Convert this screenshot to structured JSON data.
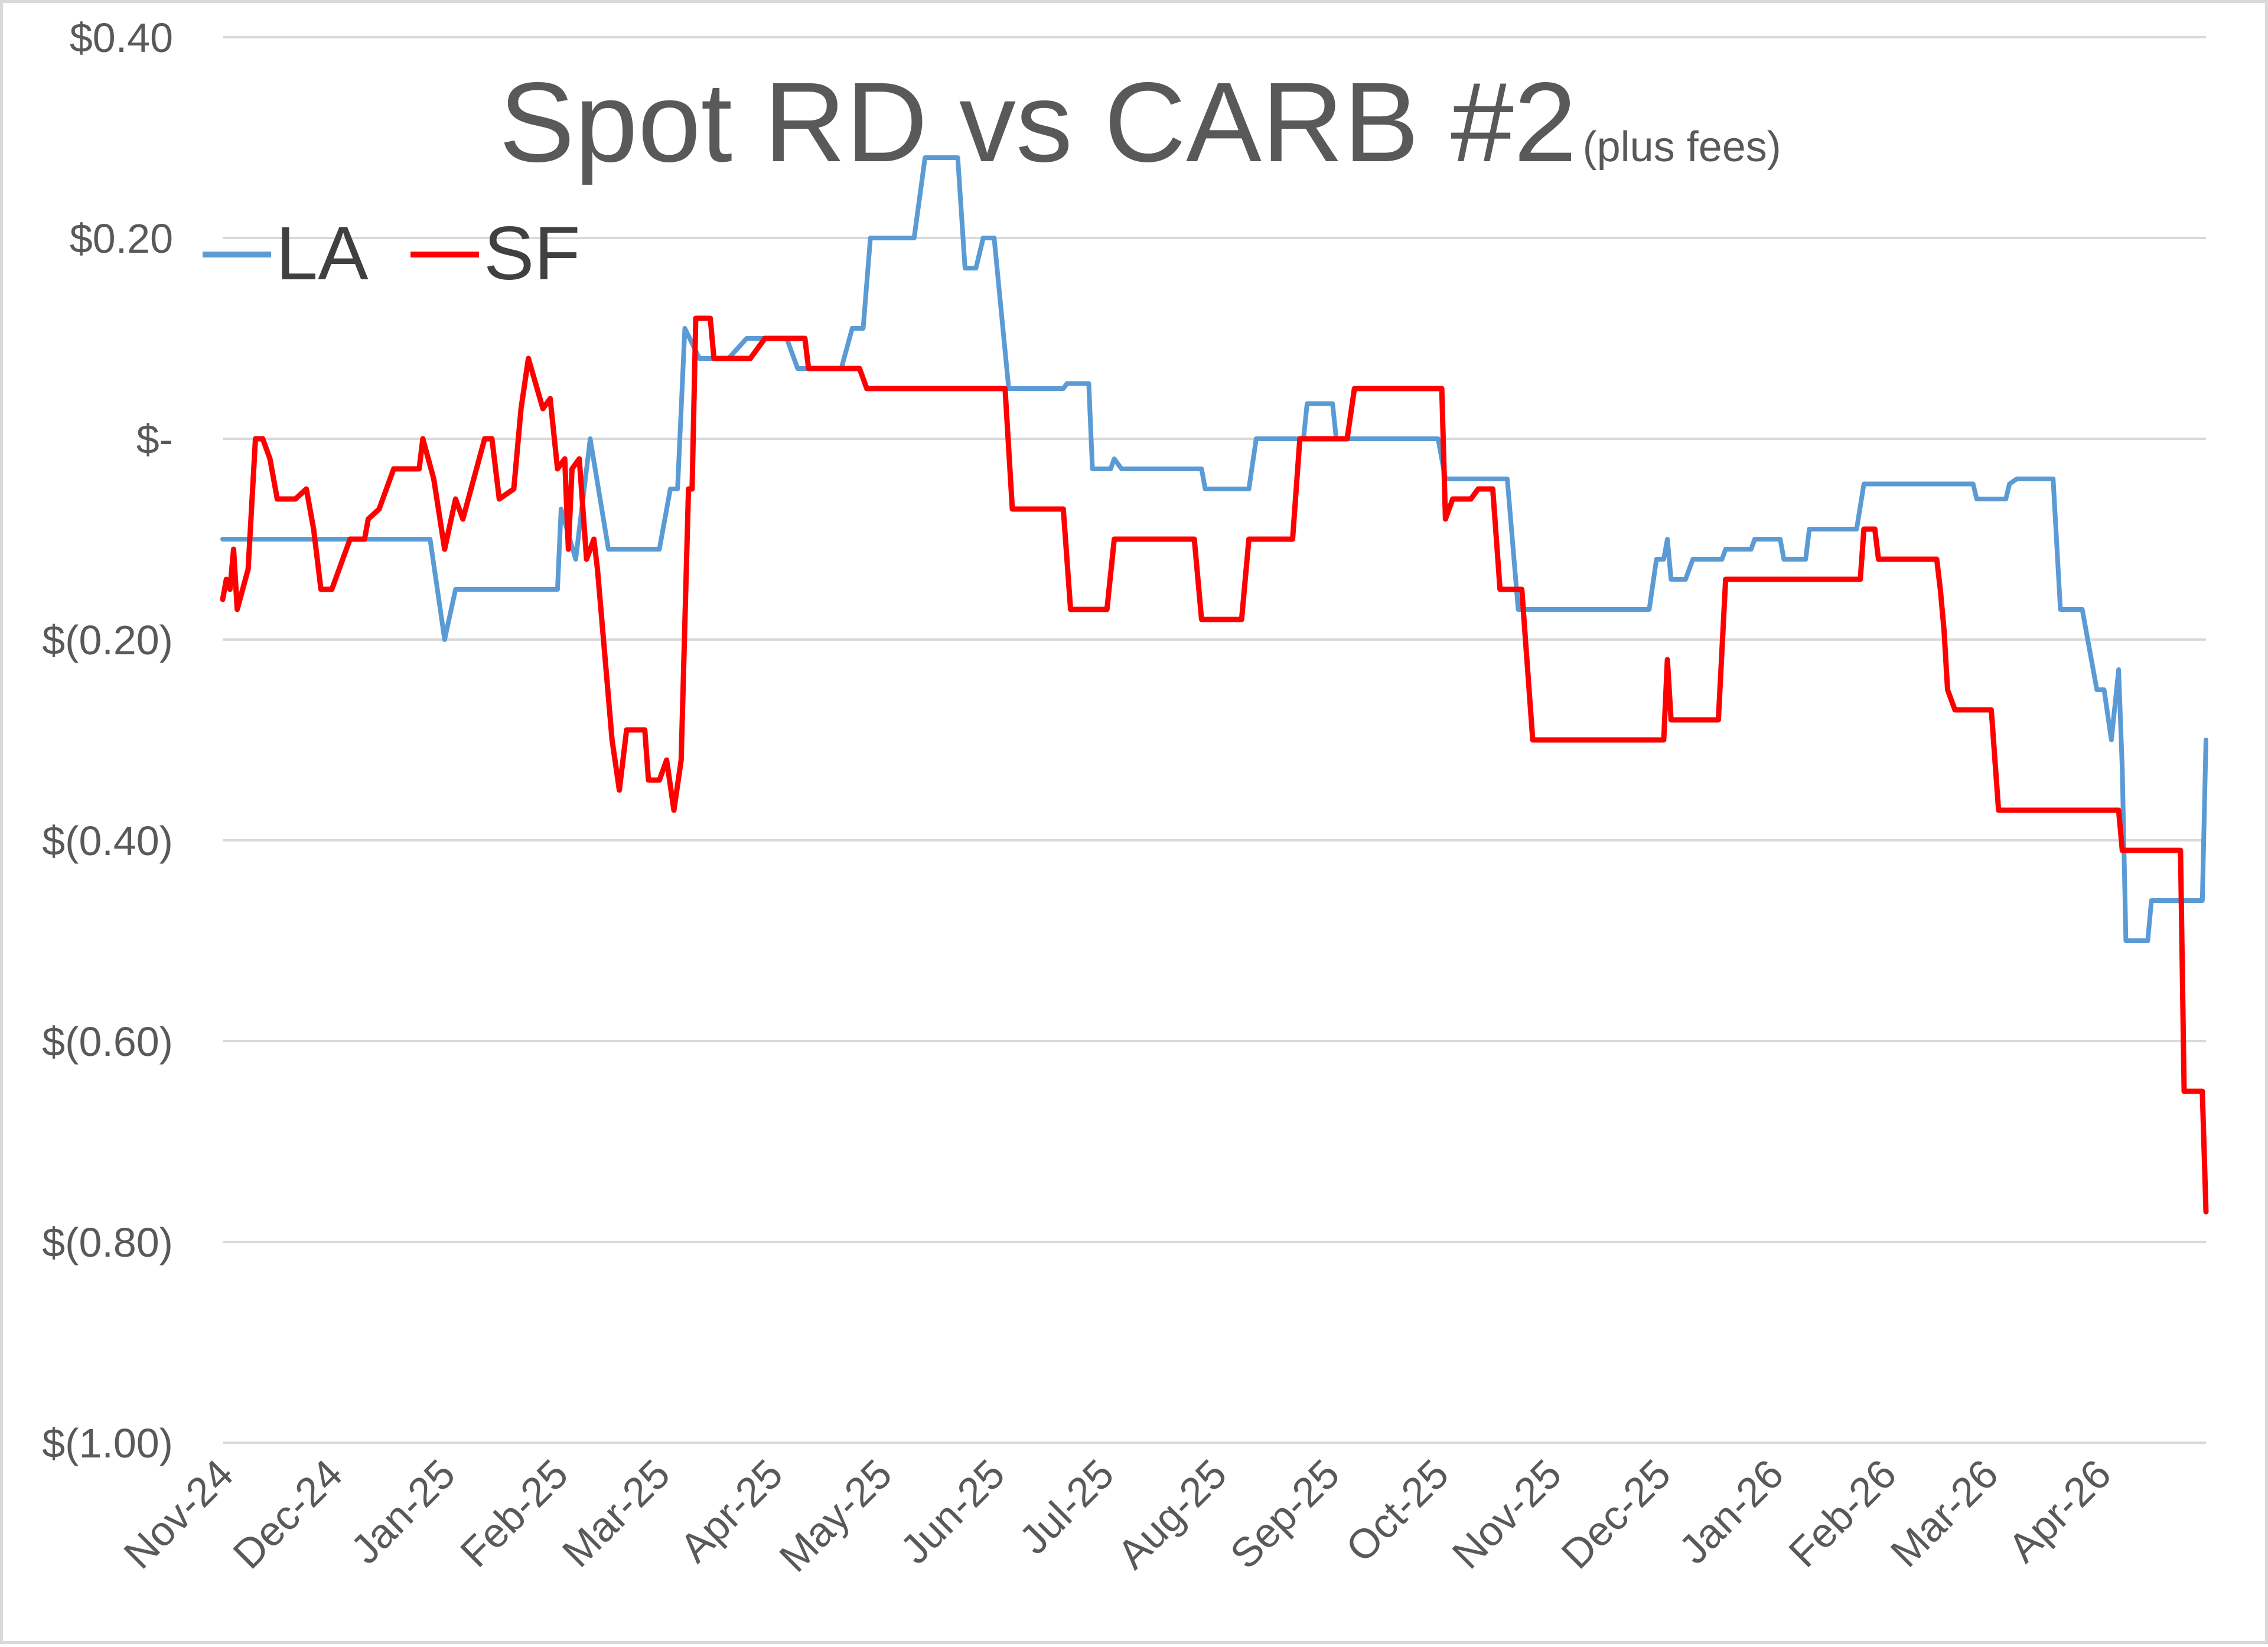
{
  "chart_data": {
    "type": "line",
    "title": "Spot RD vs CARB #2",
    "subtitle": "(plus fees)",
    "xlabel": "",
    "ylabel": "",
    "x_start": "2024-11-01",
    "x_end": "2026-04-30",
    "x_ticks": [
      "Nov-24",
      "Dec-24",
      "Jan-25",
      "Feb-25",
      "Mar-25",
      "Apr-25",
      "May-25",
      "Jun-25",
      "Jul-25",
      "Aug-25",
      "Sep-25",
      "Oct-25",
      "Nov-25",
      "Dec-25",
      "Jan-26",
      "Feb-26",
      "Mar-26",
      "Apr-26"
    ],
    "ylim": [
      -1.0,
      0.4
    ],
    "y_ticks": [
      {
        "value": 0.4,
        "label": "$0.40"
      },
      {
        "value": 0.2,
        "label": "$0.20"
      },
      {
        "value": 0.0,
        "label": "$-"
      },
      {
        "value": -0.2,
        "label": "$(0.20)"
      },
      {
        "value": -0.4,
        "label": "$(0.40)"
      },
      {
        "value": -0.6,
        "label": "$(0.60)"
      },
      {
        "value": -0.8,
        "label": "$(0.80)"
      },
      {
        "value": -1.0,
        "label": "$(1.00)"
      }
    ],
    "grid": true,
    "legend_position": "top-left",
    "series": [
      {
        "name": "LA",
        "color": "#5b9bd5",
        "points": [
          [
            "2024-11-01",
            -0.1
          ],
          [
            "2024-12-28",
            -0.1
          ],
          [
            "2025-01-01",
            -0.2
          ],
          [
            "2025-01-04",
            -0.15
          ],
          [
            "2025-02-01",
            -0.15
          ],
          [
            "2025-02-02",
            -0.07
          ],
          [
            "2025-02-06",
            -0.12
          ],
          [
            "2025-02-10",
            0.0
          ],
          [
            "2025-02-15",
            -0.11
          ],
          [
            "2025-03-01",
            -0.11
          ],
          [
            "2025-03-04",
            -0.05
          ],
          [
            "2025-03-06",
            -0.05
          ],
          [
            "2025-03-08",
            0.11
          ],
          [
            "2025-03-12",
            0.08
          ],
          [
            "2025-03-20",
            0.08
          ],
          [
            "2025-03-25",
            0.1
          ],
          [
            "2025-04-05",
            0.1
          ],
          [
            "2025-04-08",
            0.07
          ],
          [
            "2025-04-20",
            0.07
          ],
          [
            "2025-04-23",
            0.11
          ],
          [
            "2025-04-26",
            0.11
          ],
          [
            "2025-04-28",
            0.2
          ],
          [
            "2025-05-10",
            0.2
          ],
          [
            "2025-05-13",
            0.28
          ],
          [
            "2025-05-22",
            0.28
          ],
          [
            "2025-05-24",
            0.17
          ],
          [
            "2025-05-27",
            0.17
          ],
          [
            "2025-05-29",
            0.2
          ],
          [
            "2025-06-01",
            0.2
          ],
          [
            "2025-06-05",
            0.05
          ],
          [
            "2025-06-20",
            0.05
          ],
          [
            "2025-06-21",
            0.055
          ],
          [
            "2025-06-27",
            0.055
          ],
          [
            "2025-06-28",
            -0.03
          ],
          [
            "2025-07-03",
            -0.03
          ],
          [
            "2025-07-04",
            -0.02
          ],
          [
            "2025-07-06",
            -0.03
          ],
          [
            "2025-07-28",
            -0.03
          ],
          [
            "2025-07-29",
            -0.05
          ],
          [
            "2025-08-10",
            -0.05
          ],
          [
            "2025-08-12",
            0.0
          ],
          [
            "2025-08-25",
            0.0
          ],
          [
            "2025-08-26",
            0.035
          ],
          [
            "2025-09-02",
            0.035
          ],
          [
            "2025-09-03",
            0.0
          ],
          [
            "2025-10-01",
            0.0
          ],
          [
            "2025-10-03",
            -0.04
          ],
          [
            "2025-10-20",
            -0.04
          ],
          [
            "2025-10-23",
            -0.17
          ],
          [
            "2025-11-28",
            -0.17
          ],
          [
            "2025-11-30",
            -0.12
          ],
          [
            "2025-12-02",
            -0.12
          ],
          [
            "2025-12-03",
            -0.1
          ],
          [
            "2025-12-04",
            -0.14
          ],
          [
            "2025-12-08",
            -0.14
          ],
          [
            "2025-12-10",
            -0.12
          ],
          [
            "2025-12-18",
            -0.12
          ],
          [
            "2025-12-19",
            -0.11
          ],
          [
            "2025-12-26",
            -0.11
          ],
          [
            "2025-12-27",
            -0.1
          ],
          [
            "2026-01-03",
            -0.1
          ],
          [
            "2026-01-04",
            -0.12
          ],
          [
            "2026-01-10",
            -0.12
          ],
          [
            "2026-01-11",
            -0.09
          ],
          [
            "2026-01-24",
            -0.09
          ],
          [
            "2026-01-26",
            -0.045
          ],
          [
            "2026-02-25",
            -0.045
          ],
          [
            "2026-02-26",
            -0.06
          ],
          [
            "2026-03-06",
            -0.06
          ],
          [
            "2026-03-07",
            -0.045
          ],
          [
            "2026-03-09",
            -0.04
          ],
          [
            "2026-03-19",
            -0.04
          ],
          [
            "2026-03-21",
            -0.17
          ],
          [
            "2026-03-27",
            -0.17
          ],
          [
            "2026-03-31",
            -0.25
          ],
          [
            "2026-04-02",
            -0.25
          ],
          [
            "2026-04-04",
            -0.3
          ],
          [
            "2026-04-06",
            -0.23
          ],
          [
            "2026-04-07",
            -0.33
          ],
          [
            "2026-04-08",
            -0.5
          ],
          [
            "2026-04-14",
            -0.5
          ],
          [
            "2026-04-15",
            -0.46
          ],
          [
            "2026-04-29",
            -0.46
          ],
          [
            "2026-04-30",
            -0.3
          ]
        ]
      },
      {
        "name": "SF",
        "color": "#ff0000",
        "points": [
          [
            "2024-11-01",
            -0.16
          ],
          [
            "2024-11-02",
            -0.14
          ],
          [
            "2024-11-03",
            -0.15
          ],
          [
            "2024-11-04",
            -0.11
          ],
          [
            "2024-11-05",
            -0.17
          ],
          [
            "2024-11-08",
            -0.13
          ],
          [
            "2024-11-10",
            0.0
          ],
          [
            "2024-11-12",
            0.0
          ],
          [
            "2024-11-14",
            -0.02
          ],
          [
            "2024-11-16",
            -0.06
          ],
          [
            "2024-11-21",
            -0.06
          ],
          [
            "2024-11-24",
            -0.05
          ],
          [
            "2024-11-26",
            -0.09
          ],
          [
            "2024-11-28",
            -0.15
          ],
          [
            "2024-12-01",
            -0.15
          ],
          [
            "2024-12-04",
            -0.12
          ],
          [
            "2024-12-06",
            -0.1
          ],
          [
            "2024-12-10",
            -0.1
          ],
          [
            "2024-12-11",
            -0.08
          ],
          [
            "2024-12-14",
            -0.07
          ],
          [
            "2024-12-18",
            -0.03
          ],
          [
            "2024-12-25",
            -0.03
          ],
          [
            "2024-12-26",
            0.0
          ],
          [
            "2024-12-29",
            -0.04
          ],
          [
            "2025-01-01",
            -0.11
          ],
          [
            "2025-01-04",
            -0.06
          ],
          [
            "2025-01-06",
            -0.08
          ],
          [
            "2025-01-09",
            -0.04
          ],
          [
            "2025-01-12",
            0.0
          ],
          [
            "2025-01-14",
            0.0
          ],
          [
            "2025-01-16",
            -0.06
          ],
          [
            "2025-01-20",
            -0.05
          ],
          [
            "2025-01-22",
            0.03
          ],
          [
            "2025-01-24",
            0.08
          ],
          [
            "2025-01-28",
            0.03
          ],
          [
            "2025-01-30",
            0.04
          ],
          [
            "2025-02-01",
            -0.03
          ],
          [
            "2025-02-03",
            -0.02
          ],
          [
            "2025-02-04",
            -0.11
          ],
          [
            "2025-02-05",
            -0.03
          ],
          [
            "2025-02-07",
            -0.02
          ],
          [
            "2025-02-09",
            -0.12
          ],
          [
            "2025-02-11",
            -0.1
          ],
          [
            "2025-02-12",
            -0.13
          ],
          [
            "2025-02-16",
            -0.3
          ],
          [
            "2025-02-18",
            -0.35
          ],
          [
            "2025-02-20",
            -0.29
          ],
          [
            "2025-02-25",
            -0.29
          ],
          [
            "2025-02-26",
            -0.34
          ],
          [
            "2025-03-01",
            -0.34
          ],
          [
            "2025-03-03",
            -0.32
          ],
          [
            "2025-03-05",
            -0.37
          ],
          [
            "2025-03-07",
            -0.32
          ],
          [
            "2025-03-09",
            -0.05
          ],
          [
            "2025-03-10",
            -0.05
          ],
          [
            "2025-03-11",
            0.12
          ],
          [
            "2025-03-15",
            0.12
          ],
          [
            "2025-03-16",
            0.08
          ],
          [
            "2025-03-19",
            0.08
          ],
          [
            "2025-03-21",
            0.08
          ],
          [
            "2025-03-26",
            0.08
          ],
          [
            "2025-03-30",
            0.1
          ],
          [
            "2025-04-10",
            0.1
          ],
          [
            "2025-04-11",
            0.07
          ],
          [
            "2025-04-25",
            0.07
          ],
          [
            "2025-04-27",
            0.05
          ],
          [
            "2025-06-04",
            0.05
          ],
          [
            "2025-06-06",
            -0.07
          ],
          [
            "2025-06-20",
            -0.07
          ],
          [
            "2025-06-22",
            -0.17
          ],
          [
            "2025-07-02",
            -0.17
          ],
          [
            "2025-07-04",
            -0.1
          ],
          [
            "2025-07-26",
            -0.1
          ],
          [
            "2025-07-28",
            -0.18
          ],
          [
            "2025-08-08",
            -0.18
          ],
          [
            "2025-08-10",
            -0.1
          ],
          [
            "2025-08-22",
            -0.1
          ],
          [
            "2025-08-24",
            0.0
          ],
          [
            "2025-09-06",
            0.0
          ],
          [
            "2025-09-08",
            0.05
          ],
          [
            "2025-10-02",
            0.05
          ],
          [
            "2025-10-03",
            -0.08
          ],
          [
            "2025-10-05",
            -0.06
          ],
          [
            "2025-10-10",
            -0.06
          ],
          [
            "2025-10-12",
            -0.05
          ],
          [
            "2025-10-16",
            -0.05
          ],
          [
            "2025-10-18",
            -0.15
          ],
          [
            "2025-10-24",
            -0.15
          ],
          [
            "2025-10-27",
            -0.3
          ],
          [
            "2025-12-02",
            -0.3
          ],
          [
            "2025-12-03",
            -0.22
          ],
          [
            "2025-12-04",
            -0.28
          ],
          [
            "2025-12-17",
            -0.28
          ],
          [
            "2025-12-19",
            -0.14
          ],
          [
            "2026-01-25",
            -0.14
          ],
          [
            "2026-01-26",
            -0.09
          ],
          [
            "2026-01-29",
            -0.09
          ],
          [
            "2026-01-30",
            -0.12
          ],
          [
            "2026-02-15",
            -0.12
          ],
          [
            "2026-02-16",
            -0.15
          ],
          [
            "2026-02-17",
            -0.19
          ],
          [
            "2026-02-18",
            -0.25
          ],
          [
            "2026-02-20",
            -0.27
          ],
          [
            "2026-03-02",
            -0.27
          ],
          [
            "2026-03-04",
            -0.37
          ],
          [
            "2026-04-06",
            -0.37
          ],
          [
            "2026-04-07",
            -0.41
          ],
          [
            "2026-04-23",
            -0.41
          ],
          [
            "2026-04-24",
            -0.65
          ],
          [
            "2026-04-29",
            -0.65
          ],
          [
            "2026-04-30",
            -0.77
          ]
        ]
      }
    ]
  }
}
